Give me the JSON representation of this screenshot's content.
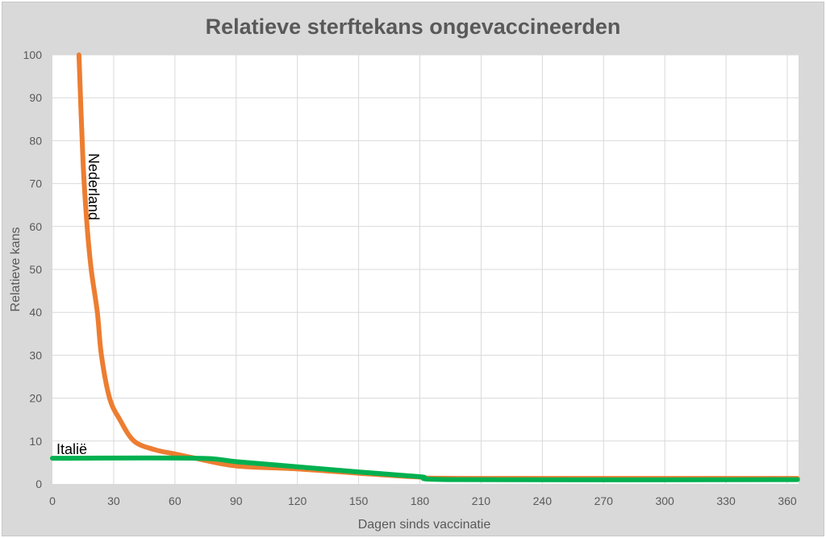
{
  "chart_data": {
    "type": "line",
    "title": "Relatieve sterftekans ongevaccineerden",
    "xlabel": "Dagen sinds vaccinatie",
    "ylabel": "Relatieve kans",
    "xlim": [
      0,
      365
    ],
    "ylim": [
      0,
      100
    ],
    "x_ticks": [
      0,
      30,
      60,
      90,
      120,
      150,
      180,
      210,
      240,
      270,
      300,
      330,
      360
    ],
    "y_ticks": [
      0,
      10,
      20,
      30,
      40,
      50,
      60,
      70,
      80,
      90,
      100
    ],
    "grid": true,
    "legend": "none (inline labels)",
    "series": [
      {
        "name": "Nederland",
        "color": "#ed7d31",
        "x": [
          13,
          15,
          17,
          19,
          22,
          24,
          28,
          33,
          40,
          50,
          60,
          70,
          90,
          120,
          150,
          180,
          200,
          365
        ],
        "y": [
          100,
          75,
          60,
          50,
          40,
          30,
          20,
          15,
          10,
          8,
          7,
          6,
          4.2,
          3.5,
          2.5,
          1.6,
          1.3,
          1.3
        ]
      },
      {
        "name": "Italië",
        "color": "#00b050",
        "x": [
          0,
          70,
          90,
          120,
          150,
          180,
          200,
          365
        ],
        "y": [
          6,
          6,
          5.2,
          4,
          2.8,
          1.7,
          1,
          1
        ]
      }
    ],
    "annotations": [
      {
        "text": "Nederland",
        "rotation": 90
      },
      {
        "text": "Italië",
        "rotation": 0
      }
    ]
  }
}
